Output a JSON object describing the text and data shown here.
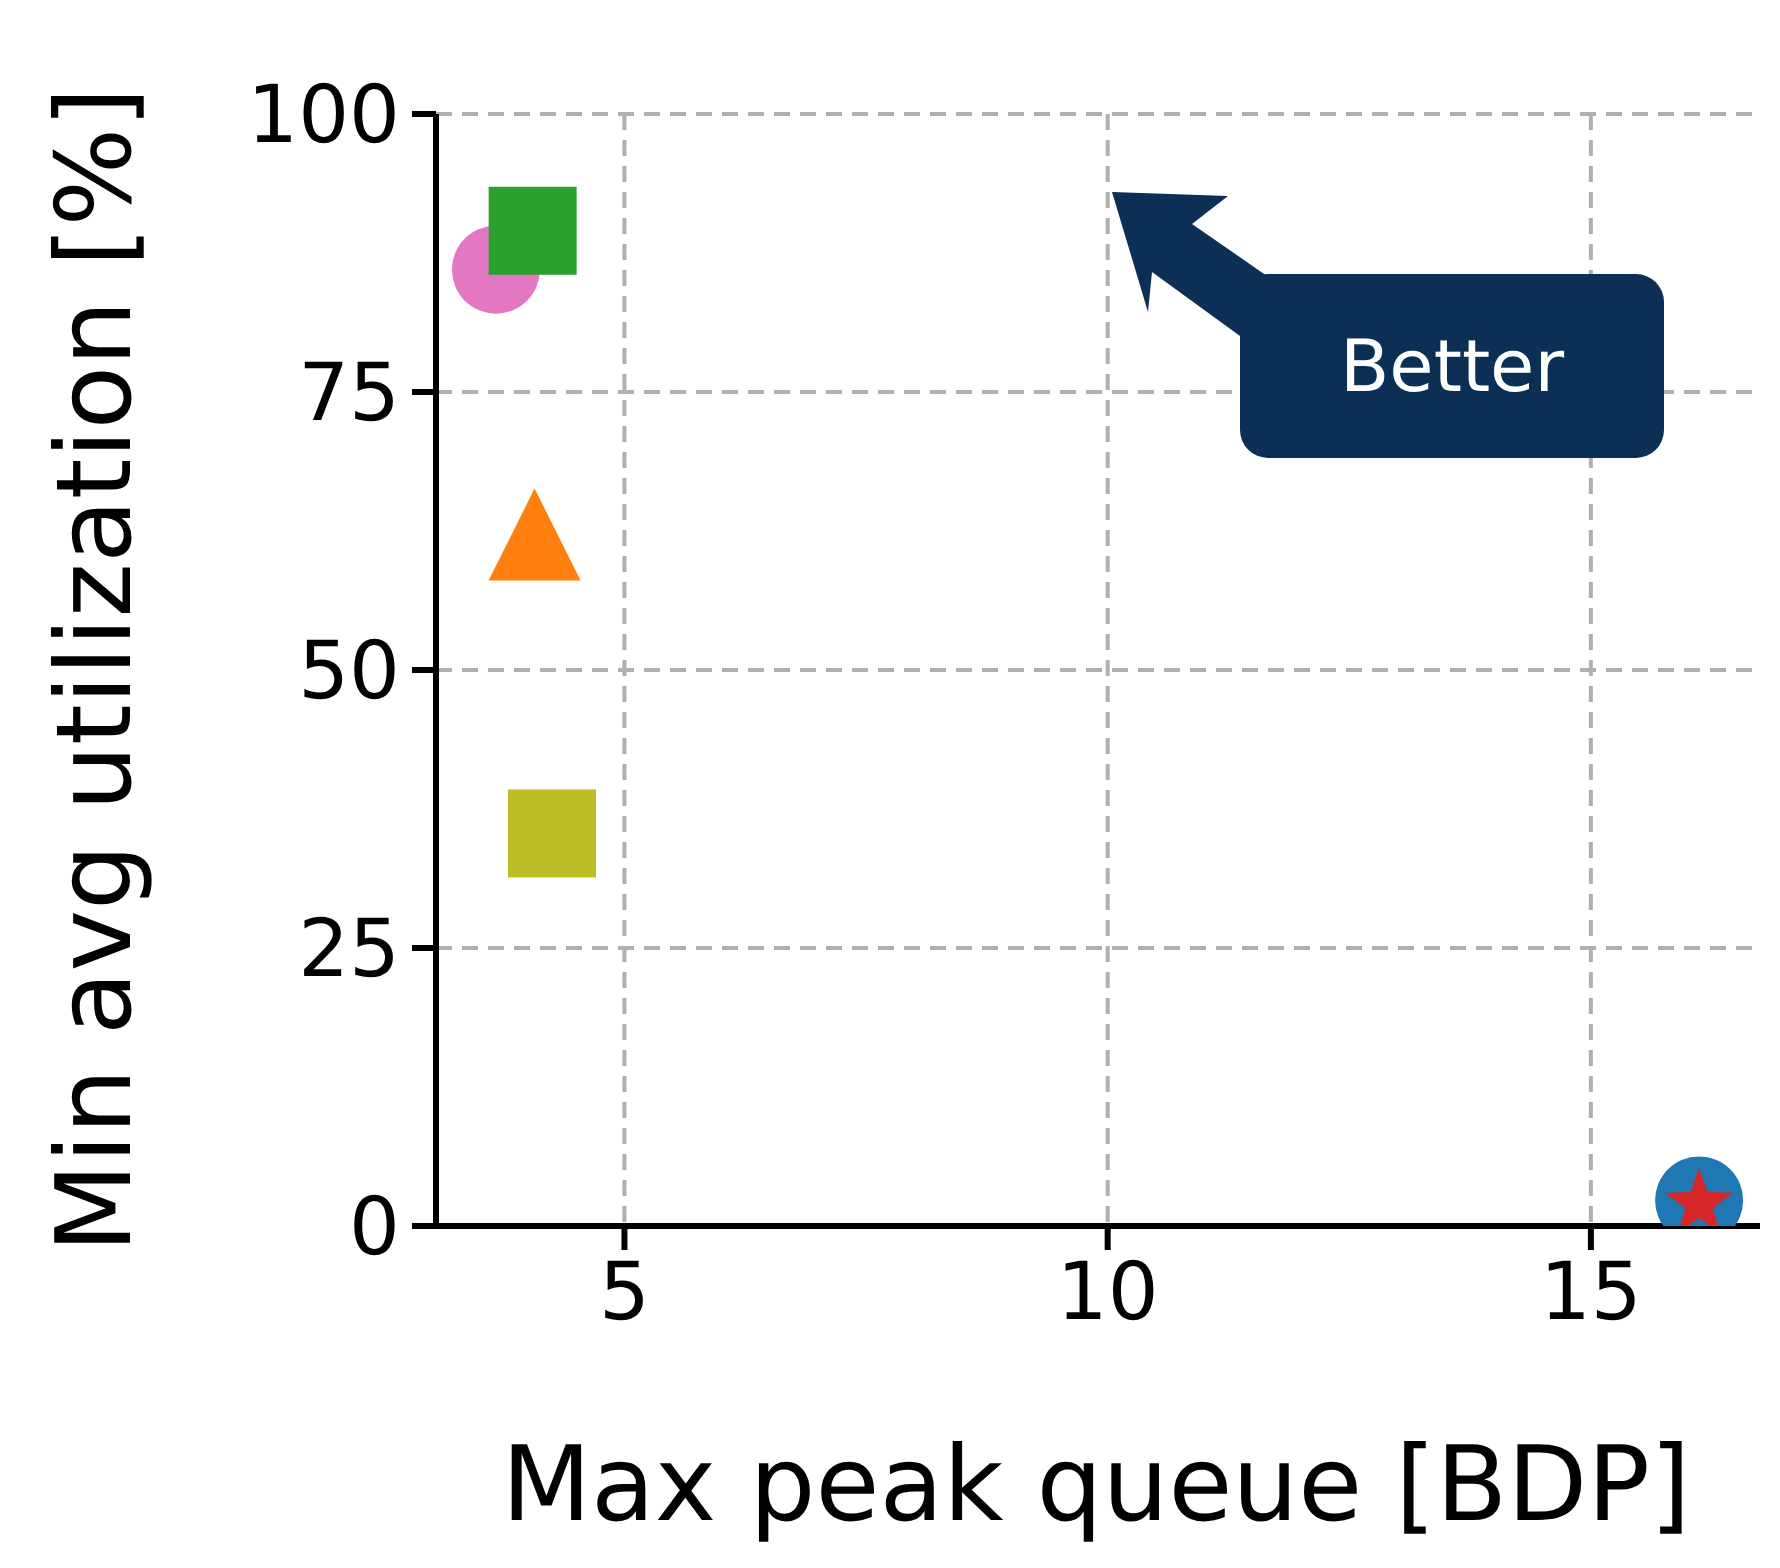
{
  "chart_data": {
    "type": "scatter",
    "xlabel": "Max peak queue [BDP]",
    "ylabel": "Min avg utilization [%]",
    "xlim": [
      3.05,
      16.75
    ],
    "xticks": [
      5,
      10,
      15
    ],
    "ylim": [
      0,
      100
    ],
    "yticks": [
      0,
      25,
      50,
      75,
      100
    ],
    "grid": true,
    "annotations": [
      "Better"
    ],
    "series": [
      {
        "color": "#e377c2",
        "marker": "circle",
        "x": [
          3.67
        ],
        "values": [
          86
        ]
      },
      {
        "color": "#2ca02c",
        "marker": "square",
        "x": [
          4.05
        ],
        "values": [
          89.5
        ]
      },
      {
        "color": "#ff7f0e",
        "marker": "triangle",
        "x": [
          4.07
        ],
        "values": [
          62
        ]
      },
      {
        "color": "#bcbd22",
        "marker": "square",
        "x": [
          4.25
        ],
        "values": [
          35.3
        ]
      },
      {
        "color": "#1f77b4",
        "marker": "circle",
        "x": [
          16.12
        ],
        "values": [
          2.3
        ]
      },
      {
        "color": "#d62728",
        "marker": "star",
        "x": [
          16.12
        ],
        "values": [
          2
        ]
      }
    ]
  }
}
